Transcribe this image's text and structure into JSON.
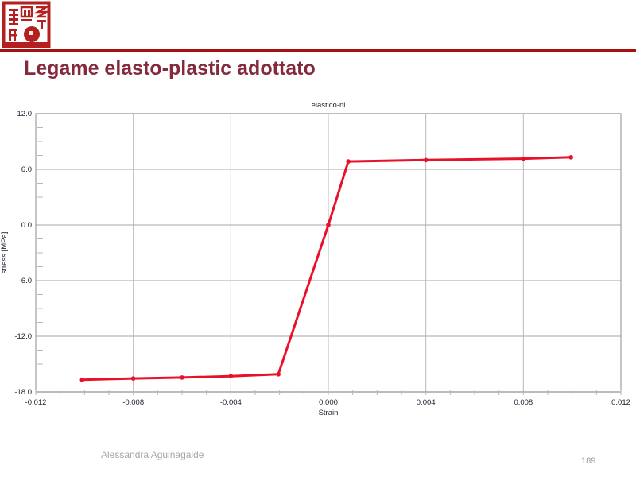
{
  "slide": {
    "title": "Legame elasto-plastic adottato",
    "title_color": "#85293C",
    "rule_color": "#A80F0F",
    "seal_color": "#B42020",
    "footer_author": "Alessandra Aguinagalde",
    "page_number": "189"
  },
  "chart_data": {
    "type": "line",
    "title": "elastico-nl",
    "xlabel": "Strain",
    "ylabel": "stress [MPa]",
    "xlim": [
      -0.012,
      0.012
    ],
    "ylim": [
      -18,
      12
    ],
    "xticks": [
      -0.012,
      -0.008,
      -0.004,
      0.0,
      0.004,
      0.008,
      0.012
    ],
    "yticks": [
      -18,
      -12,
      -6,
      0,
      6,
      12
    ],
    "x_minor_step": 0.001,
    "y_minor_step": 1.5,
    "grid": true,
    "legend": "none",
    "line_color": "#E8112A",
    "grid_color": "#b8b8b8",
    "frame_color": "#8c8c8c",
    "text_color": "#1f1f2e",
    "series": [
      {
        "name": "elastico-nl",
        "points": [
          [
            -0.0101,
            -16.7
          ],
          [
            -0.008,
            -16.55
          ],
          [
            -0.006,
            -16.45
          ],
          [
            -0.004,
            -16.3
          ],
          [
            -0.00205,
            -16.1
          ],
          [
            0.0,
            0.0
          ],
          [
            0.00082,
            6.85
          ],
          [
            0.004,
            7.0
          ],
          [
            0.008,
            7.15
          ],
          [
            0.00995,
            7.3
          ]
        ]
      }
    ]
  }
}
